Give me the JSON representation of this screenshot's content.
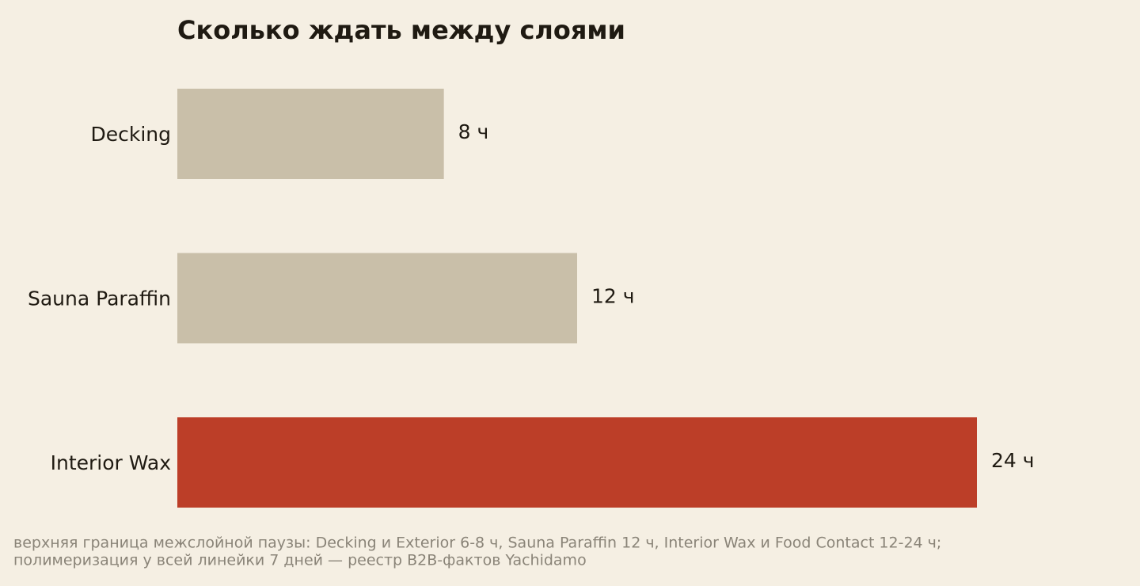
{
  "chart_data": {
    "type": "barh",
    "title": "Сколько ждать между слоями",
    "categories": [
      "Decking",
      "Sauna Paraffin",
      "Interior Wax"
    ],
    "values": [
      8,
      12,
      24
    ],
    "value_labels": [
      "8 ч",
      "12 ч",
      "24 ч"
    ],
    "colors": [
      "#c9bfa9",
      "#c9bfa9",
      "#bc3e28"
    ],
    "note": [
      "верхняя граница межслойной паузы: Decking и Exterior 6-8 ч, Sauna Paraffin 12 ч, Interior Wax и Food Contact 12-24 ч;",
      "полимеризация у всей линейки 7 дней — реестр B2B-фактов Yachidamo"
    ]
  }
}
